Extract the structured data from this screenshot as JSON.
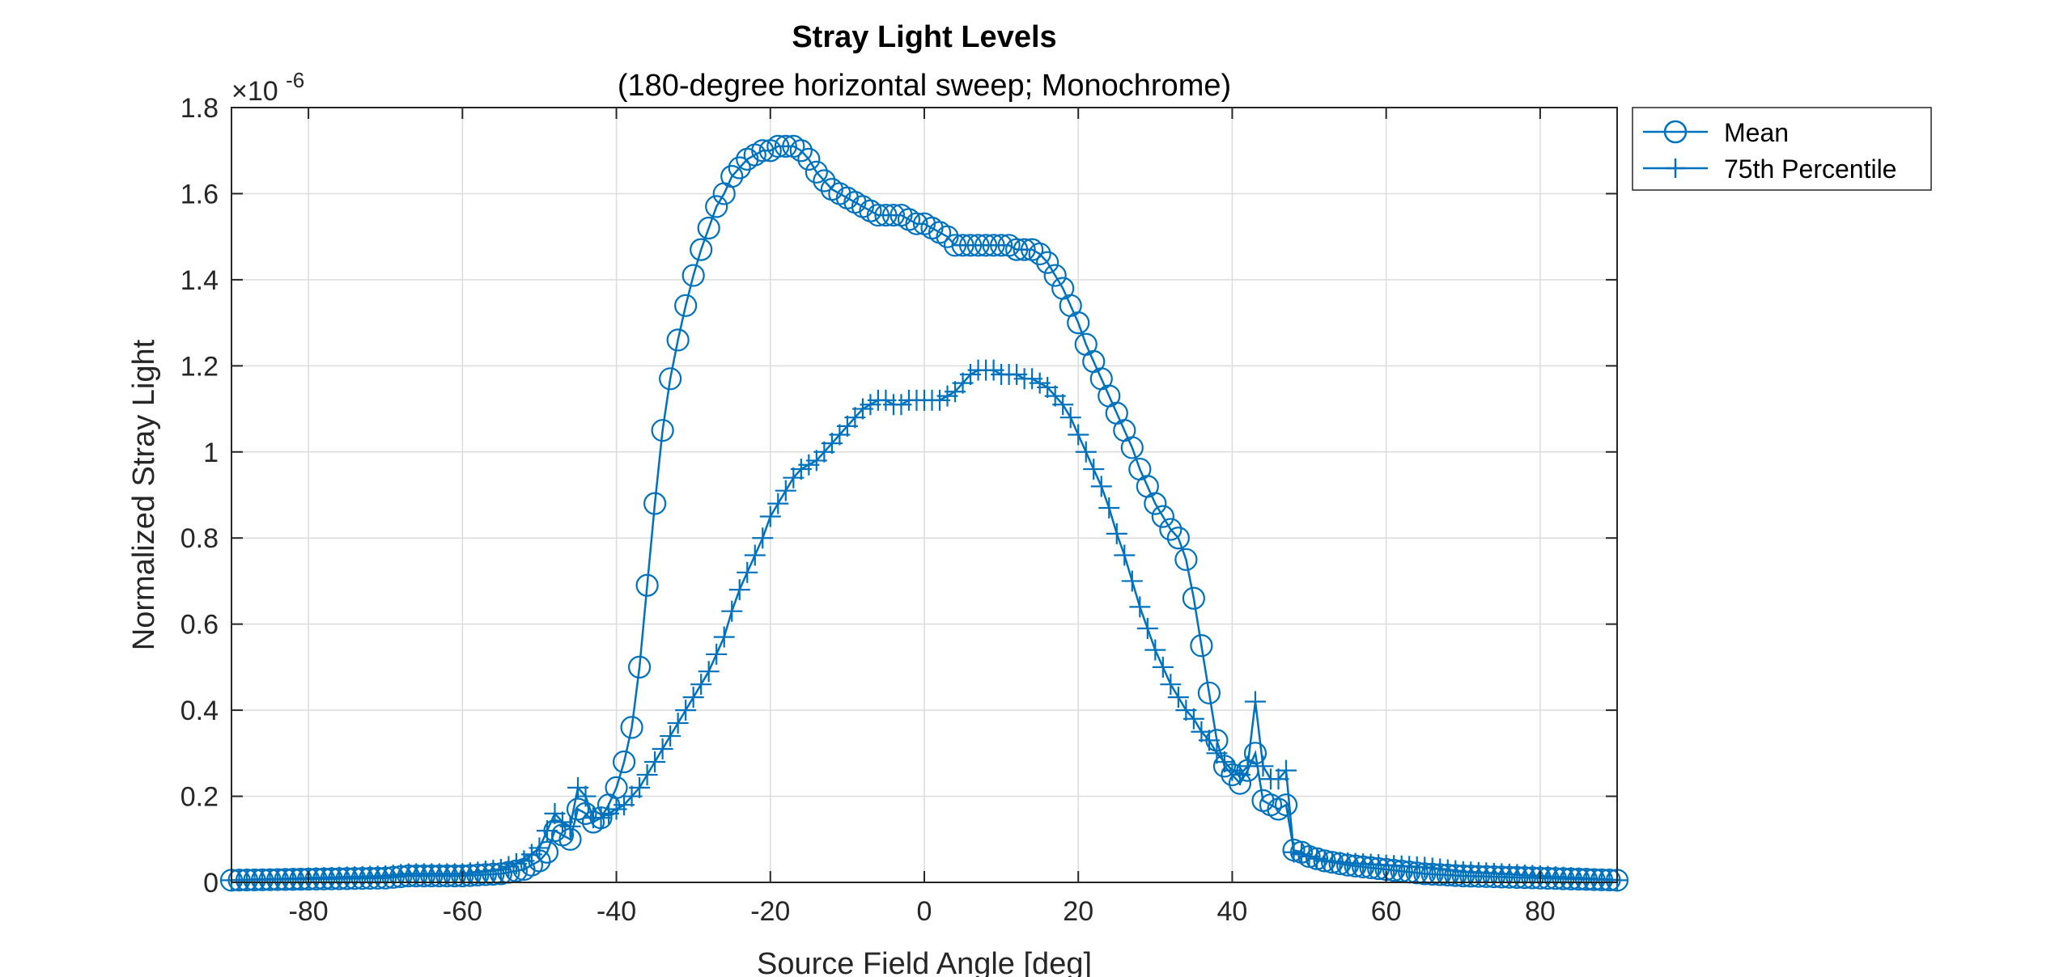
{
  "chart_data": {
    "type": "line",
    "title": "Stray Light Levels",
    "subtitle": "(180-degree horizontal sweep; Monochrome)",
    "xlabel": "Source Field Angle [deg]",
    "ylabel": "Normalized Stray Light",
    "y_exponent_prefix": "×10",
    "y_exponent_power": "-6",
    "xlim": [
      -90,
      90
    ],
    "ylim": [
      0,
      1.8
    ],
    "xticks": [
      -80,
      -60,
      -40,
      -20,
      0,
      20,
      40,
      60,
      80
    ],
    "xtick_labels": [
      "-80",
      "-60",
      "-40",
      "-20",
      "0",
      "20",
      "40",
      "60",
      "80"
    ],
    "yticks": [
      0,
      0.2,
      0.4,
      0.6,
      0.8,
      1,
      1.2,
      1.4,
      1.6,
      1.8
    ],
    "ytick_labels": [
      "0",
      "0.2",
      "0.4",
      "0.6",
      "0.8",
      "1",
      "1.2",
      "1.4",
      "1.6",
      "1.8"
    ],
    "grid": true,
    "legend_position": "outside-top-right",
    "color": "#0072BD",
    "series": [
      {
        "name": "Mean",
        "marker": "circle",
        "points": [
          [
            -90,
            0.005
          ],
          [
            -70,
            0.01
          ],
          [
            -67,
            0.015
          ],
          [
            -60,
            0.015
          ],
          [
            -55,
            0.02
          ],
          [
            -52,
            0.03
          ],
          [
            -50,
            0.05
          ],
          [
            -49,
            0.07
          ],
          [
            -48,
            0.12
          ],
          [
            -47,
            0.11
          ],
          [
            -46,
            0.1
          ],
          [
            -45,
            0.17
          ],
          [
            -44,
            0.16
          ],
          [
            -43,
            0.14
          ],
          [
            -42,
            0.15
          ],
          [
            -41,
            0.18
          ],
          [
            -40,
            0.22
          ],
          [
            -39,
            0.28
          ],
          [
            -38,
            0.36
          ],
          [
            -37,
            0.5
          ],
          [
            -36,
            0.69
          ],
          [
            -35,
            0.88
          ],
          [
            -34,
            1.05
          ],
          [
            -33,
            1.17
          ],
          [
            -32,
            1.26
          ],
          [
            -31,
            1.34
          ],
          [
            -30,
            1.41
          ],
          [
            -29,
            1.47
          ],
          [
            -28,
            1.52
          ],
          [
            -27,
            1.57
          ],
          [
            -26,
            1.6
          ],
          [
            -25,
            1.64
          ],
          [
            -24,
            1.66
          ],
          [
            -23,
            1.68
          ],
          [
            -22,
            1.69
          ],
          [
            -21,
            1.7
          ],
          [
            -20,
            1.7
          ],
          [
            -19,
            1.71
          ],
          [
            -18,
            1.71
          ],
          [
            -17,
            1.71
          ],
          [
            -16,
            1.7
          ],
          [
            -15,
            1.68
          ],
          [
            -14,
            1.65
          ],
          [
            -13,
            1.63
          ],
          [
            -12,
            1.61
          ],
          [
            -11,
            1.6
          ],
          [
            -10,
            1.59
          ],
          [
            -9,
            1.58
          ],
          [
            -8,
            1.57
          ],
          [
            -7,
            1.56
          ],
          [
            -6,
            1.55
          ],
          [
            -5,
            1.55
          ],
          [
            -4,
            1.55
          ],
          [
            -3,
            1.55
          ],
          [
            -2,
            1.54
          ],
          [
            -1,
            1.53
          ],
          [
            0,
            1.53
          ],
          [
            1,
            1.52
          ],
          [
            2,
            1.51
          ],
          [
            3,
            1.5
          ],
          [
            4,
            1.48
          ],
          [
            5,
            1.48
          ],
          [
            6,
            1.48
          ],
          [
            7,
            1.48
          ],
          [
            8,
            1.48
          ],
          [
            9,
            1.48
          ],
          [
            10,
            1.48
          ],
          [
            11,
            1.48
          ],
          [
            12,
            1.47
          ],
          [
            13,
            1.47
          ],
          [
            14,
            1.47
          ],
          [
            15,
            1.46
          ],
          [
            16,
            1.44
          ],
          [
            17,
            1.41
          ],
          [
            18,
            1.38
          ],
          [
            19,
            1.34
          ],
          [
            20,
            1.3
          ],
          [
            21,
            1.25
          ],
          [
            22,
            1.21
          ],
          [
            23,
            1.17
          ],
          [
            24,
            1.13
          ],
          [
            25,
            1.09
          ],
          [
            26,
            1.05
          ],
          [
            27,
            1.01
          ],
          [
            28,
            0.96
          ],
          [
            29,
            0.92
          ],
          [
            30,
            0.88
          ],
          [
            31,
            0.85
          ],
          [
            32,
            0.82
          ],
          [
            33,
            0.8
          ],
          [
            34,
            0.75
          ],
          [
            35,
            0.66
          ],
          [
            36,
            0.55
          ],
          [
            37,
            0.44
          ],
          [
            38,
            0.33
          ],
          [
            39,
            0.27
          ],
          [
            40,
            0.25
          ],
          [
            41,
            0.23
          ],
          [
            42,
            0.26
          ],
          [
            43,
            0.3
          ],
          [
            44,
            0.19
          ],
          [
            45,
            0.18
          ],
          [
            46,
            0.17
          ],
          [
            47,
            0.18
          ],
          [
            48,
            0.075
          ],
          [
            49,
            0.07
          ],
          [
            50,
            0.06
          ],
          [
            52,
            0.05
          ],
          [
            55,
            0.04
          ],
          [
            60,
            0.03
          ],
          [
            65,
            0.02
          ],
          [
            70,
            0.015
          ],
          [
            80,
            0.01
          ],
          [
            90,
            0.005
          ]
        ]
      },
      {
        "name": "75th Percentile",
        "marker": "plus",
        "points": [
          [
            -90,
            0.005
          ],
          [
            -70,
            0.015
          ],
          [
            -67,
            0.02
          ],
          [
            -60,
            0.02
          ],
          [
            -55,
            0.03
          ],
          [
            -52,
            0.05
          ],
          [
            -50,
            0.08
          ],
          [
            -49,
            0.12
          ],
          [
            -48,
            0.16
          ],
          [
            -47,
            0.14
          ],
          [
            -46,
            0.13
          ],
          [
            -45,
            0.22
          ],
          [
            -44,
            0.2
          ],
          [
            -43,
            0.15
          ],
          [
            -42,
            0.15
          ],
          [
            -41,
            0.16
          ],
          [
            -40,
            0.17
          ],
          [
            -39,
            0.18
          ],
          [
            -38,
            0.2
          ],
          [
            -37,
            0.22
          ],
          [
            -36,
            0.25
          ],
          [
            -35,
            0.28
          ],
          [
            -34,
            0.31
          ],
          [
            -33,
            0.34
          ],
          [
            -32,
            0.37
          ],
          [
            -31,
            0.4
          ],
          [
            -30,
            0.43
          ],
          [
            -29,
            0.46
          ],
          [
            -28,
            0.49
          ],
          [
            -27,
            0.53
          ],
          [
            -26,
            0.57
          ],
          [
            -25,
            0.63
          ],
          [
            -24,
            0.68
          ],
          [
            -23,
            0.72
          ],
          [
            -22,
            0.76
          ],
          [
            -21,
            0.8
          ],
          [
            -20,
            0.85
          ],
          [
            -19,
            0.88
          ],
          [
            -18,
            0.91
          ],
          [
            -17,
            0.94
          ],
          [
            -16,
            0.96
          ],
          [
            -15,
            0.97
          ],
          [
            -14,
            0.98
          ],
          [
            -13,
            1.0
          ],
          [
            -12,
            1.02
          ],
          [
            -11,
            1.04
          ],
          [
            -10,
            1.06
          ],
          [
            -9,
            1.08
          ],
          [
            -8,
            1.1
          ],
          [
            -7,
            1.11
          ],
          [
            -6,
            1.12
          ],
          [
            -5,
            1.12
          ],
          [
            -4,
            1.11
          ],
          [
            -3,
            1.11
          ],
          [
            -2,
            1.12
          ],
          [
            -1,
            1.12
          ],
          [
            0,
            1.12
          ],
          [
            1,
            1.12
          ],
          [
            2,
            1.12
          ],
          [
            3,
            1.13
          ],
          [
            4,
            1.14
          ],
          [
            5,
            1.16
          ],
          [
            6,
            1.18
          ],
          [
            7,
            1.19
          ],
          [
            8,
            1.19
          ],
          [
            9,
            1.19
          ],
          [
            10,
            1.18
          ],
          [
            11,
            1.18
          ],
          [
            12,
            1.18
          ],
          [
            13,
            1.17
          ],
          [
            14,
            1.17
          ],
          [
            15,
            1.16
          ],
          [
            16,
            1.15
          ],
          [
            17,
            1.13
          ],
          [
            18,
            1.11
          ],
          [
            19,
            1.08
          ],
          [
            20,
            1.04
          ],
          [
            21,
            1.0
          ],
          [
            22,
            0.96
          ],
          [
            23,
            0.92
          ],
          [
            24,
            0.87
          ],
          [
            25,
            0.81
          ],
          [
            26,
            0.76
          ],
          [
            27,
            0.7
          ],
          [
            28,
            0.64
          ],
          [
            29,
            0.59
          ],
          [
            30,
            0.54
          ],
          [
            31,
            0.5
          ],
          [
            32,
            0.46
          ],
          [
            33,
            0.43
          ],
          [
            34,
            0.4
          ],
          [
            35,
            0.38
          ],
          [
            36,
            0.35
          ],
          [
            37,
            0.33
          ],
          [
            38,
            0.3
          ],
          [
            39,
            0.28
          ],
          [
            40,
            0.26
          ],
          [
            41,
            0.25
          ],
          [
            42,
            0.27
          ],
          [
            43,
            0.42
          ],
          [
            44,
            0.27
          ],
          [
            45,
            0.24
          ],
          [
            46,
            0.24
          ],
          [
            47,
            0.26
          ],
          [
            48,
            0.07
          ],
          [
            49,
            0.065
          ],
          [
            50,
            0.06
          ],
          [
            52,
            0.05
          ],
          [
            55,
            0.045
          ],
          [
            60,
            0.04
          ],
          [
            65,
            0.035
          ],
          [
            70,
            0.025
          ],
          [
            80,
            0.015
          ],
          [
            90,
            0.005
          ]
        ]
      }
    ]
  }
}
